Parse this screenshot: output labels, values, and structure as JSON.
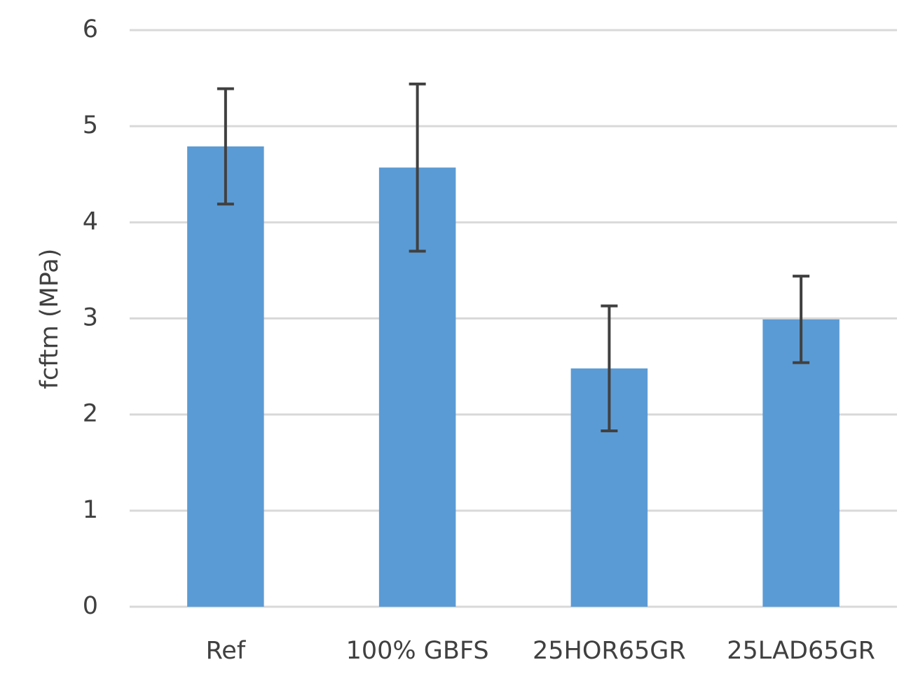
{
  "chart_data": {
    "type": "bar",
    "y_label": "fcftm (MPa)",
    "categories": [
      "Ref",
      "100% GBFS",
      "25HOR65GR",
      "25LAD65GR"
    ],
    "values": [
      4.79,
      4.57,
      2.48,
      2.99
    ],
    "errors": [
      0.6,
      0.87,
      0.65,
      0.45
    ],
    "color": "#5b9bd5",
    "error_color": "#404040",
    "ylim": [
      0,
      6
    ],
    "yticks": [
      0,
      1,
      2,
      3,
      4,
      5,
      6
    ],
    "grid": true
  }
}
